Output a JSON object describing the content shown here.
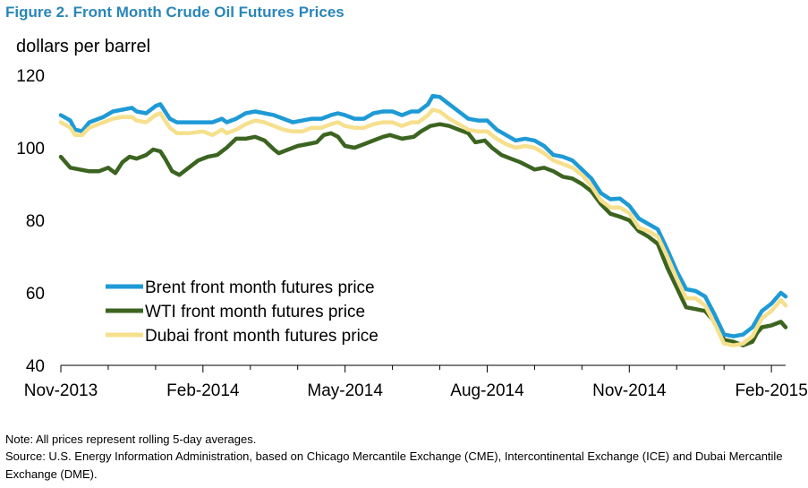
{
  "figure": {
    "title": "Figure 2. Front Month Crude Oil Futures Prices",
    "note": "Note: All prices represent rolling 5-day averages.",
    "source": "Source:  U.S. Energy Information Administration, based on Chicago Mercantile Exchange (CME), Intercontinental Exchange (ICE) and Dubai Mercantile Exchange (DME)."
  },
  "chart_data": {
    "type": "line",
    "ylabel": "dollars per barrel",
    "ylim": [
      40,
      120
    ],
    "yticks": [
      40,
      60,
      80,
      100,
      120
    ],
    "xlim": [
      0,
      15.3
    ],
    "xticks": [
      {
        "x": 0,
        "label": "Nov-2013"
      },
      {
        "x": 3,
        "label": "Feb-2014"
      },
      {
        "x": 6,
        "label": "May-2014"
      },
      {
        "x": 9,
        "label": "Aug-2014"
      },
      {
        "x": 12,
        "label": "Nov-2014"
      },
      {
        "x": 15,
        "label": "Feb-2015"
      }
    ],
    "legend_position": "bottom-left",
    "grid": false,
    "series": [
      {
        "name": "Brent front month futures price",
        "color": "#1e9ad6",
        "points": [
          [
            0,
            109
          ],
          [
            0.2,
            107.5
          ],
          [
            0.3,
            105
          ],
          [
            0.45,
            104.6
          ],
          [
            0.6,
            107
          ],
          [
            0.9,
            108.5
          ],
          [
            1.1,
            110
          ],
          [
            1.3,
            110.5
          ],
          [
            1.5,
            111
          ],
          [
            1.6,
            110
          ],
          [
            1.8,
            109.5
          ],
          [
            2.0,
            111.5
          ],
          [
            2.1,
            112
          ],
          [
            2.2,
            110
          ],
          [
            2.3,
            108
          ],
          [
            2.45,
            107
          ],
          [
            2.7,
            107
          ],
          [
            3.0,
            107
          ],
          [
            3.2,
            107
          ],
          [
            3.4,
            108
          ],
          [
            3.5,
            107
          ],
          [
            3.7,
            108
          ],
          [
            3.9,
            109.5
          ],
          [
            4.1,
            110
          ],
          [
            4.3,
            109.5
          ],
          [
            4.5,
            109
          ],
          [
            4.7,
            108
          ],
          [
            4.9,
            107
          ],
          [
            5.1,
            107.5
          ],
          [
            5.3,
            108
          ],
          [
            5.5,
            108
          ],
          [
            5.7,
            109
          ],
          [
            5.85,
            109.5
          ],
          [
            6.0,
            109
          ],
          [
            6.2,
            108
          ],
          [
            6.4,
            108
          ],
          [
            6.6,
            109.5
          ],
          [
            6.8,
            110
          ],
          [
            7.0,
            110
          ],
          [
            7.2,
            109
          ],
          [
            7.4,
            110
          ],
          [
            7.55,
            110
          ],
          [
            7.75,
            112
          ],
          [
            7.85,
            114.3
          ],
          [
            8.0,
            114
          ],
          [
            8.2,
            112
          ],
          [
            8.4,
            110
          ],
          [
            8.6,
            108
          ],
          [
            8.8,
            107.5
          ],
          [
            9.0,
            107.5
          ],
          [
            9.2,
            105
          ],
          [
            9.4,
            103.5
          ],
          [
            9.6,
            102
          ],
          [
            9.8,
            102.5
          ],
          [
            10.0,
            102
          ],
          [
            10.2,
            100.5
          ],
          [
            10.4,
            98
          ],
          [
            10.6,
            97.5
          ],
          [
            10.8,
            96.5
          ],
          [
            11.0,
            94
          ],
          [
            11.2,
            91.5
          ],
          [
            11.4,
            87.5
          ],
          [
            11.6,
            85.8
          ],
          [
            11.8,
            86
          ],
          [
            12.0,
            84
          ],
          [
            12.2,
            80.5
          ],
          [
            12.4,
            79
          ],
          [
            12.6,
            77.5
          ],
          [
            12.8,
            72
          ],
          [
            13.0,
            66
          ],
          [
            13.2,
            61
          ],
          [
            13.4,
            60.5
          ],
          [
            13.6,
            59
          ],
          [
            13.8,
            54
          ],
          [
            14.0,
            48.5
          ],
          [
            14.2,
            48
          ],
          [
            14.4,
            48.5
          ],
          [
            14.6,
            50.5
          ],
          [
            14.8,
            55
          ],
          [
            15.0,
            57
          ],
          [
            15.2,
            60
          ],
          [
            15.3,
            59
          ]
        ]
      },
      {
        "name": "WTI front month futures price",
        "color": "#3c6421",
        "points": [
          [
            0,
            97.5
          ],
          [
            0.2,
            94.5
          ],
          [
            0.4,
            94
          ],
          [
            0.6,
            93.5
          ],
          [
            0.8,
            93.5
          ],
          [
            1.0,
            94.5
          ],
          [
            1.15,
            93
          ],
          [
            1.3,
            96
          ],
          [
            1.45,
            97.5
          ],
          [
            1.6,
            97
          ],
          [
            1.8,
            98
          ],
          [
            1.95,
            99.5
          ],
          [
            2.1,
            99
          ],
          [
            2.2,
            97
          ],
          [
            2.35,
            93.5
          ],
          [
            2.5,
            92.5
          ],
          [
            2.7,
            94.5
          ],
          [
            2.9,
            96.5
          ],
          [
            3.1,
            97.5
          ],
          [
            3.3,
            98
          ],
          [
            3.5,
            100
          ],
          [
            3.7,
            102.5
          ],
          [
            3.9,
            102.5
          ],
          [
            4.1,
            103
          ],
          [
            4.3,
            102
          ],
          [
            4.5,
            99.5
          ],
          [
            4.6,
            98.5
          ],
          [
            4.8,
            99.5
          ],
          [
            5.0,
            100.5
          ],
          [
            5.2,
            101
          ],
          [
            5.4,
            101.5
          ],
          [
            5.55,
            103.5
          ],
          [
            5.7,
            104
          ],
          [
            5.85,
            103
          ],
          [
            6.0,
            100.5
          ],
          [
            6.2,
            100
          ],
          [
            6.4,
            101
          ],
          [
            6.6,
            102
          ],
          [
            6.8,
            103
          ],
          [
            6.95,
            103.5
          ],
          [
            7.2,
            102.5
          ],
          [
            7.45,
            103
          ],
          [
            7.6,
            104.5
          ],
          [
            7.8,
            106
          ],
          [
            8.0,
            106.5
          ],
          [
            8.2,
            106
          ],
          [
            8.4,
            105
          ],
          [
            8.6,
            104
          ],
          [
            8.75,
            101.5
          ],
          [
            8.95,
            102
          ],
          [
            9.1,
            100
          ],
          [
            9.3,
            98
          ],
          [
            9.5,
            97
          ],
          [
            9.7,
            96
          ],
          [
            9.85,
            95
          ],
          [
            10.0,
            94
          ],
          [
            10.2,
            94.5
          ],
          [
            10.4,
            93.5
          ],
          [
            10.6,
            92
          ],
          [
            10.8,
            91.5
          ],
          [
            11.0,
            90
          ],
          [
            11.2,
            88
          ],
          [
            11.4,
            84.5
          ],
          [
            11.6,
            81.8
          ],
          [
            11.8,
            81
          ],
          [
            12.0,
            80
          ],
          [
            12.2,
            77
          ],
          [
            12.4,
            75.5
          ],
          [
            12.6,
            73.5
          ],
          [
            12.8,
            67
          ],
          [
            13.0,
            61.5
          ],
          [
            13.2,
            56
          ],
          [
            13.4,
            55.5
          ],
          [
            13.6,
            55
          ],
          [
            13.8,
            52
          ],
          [
            14.0,
            47
          ],
          [
            14.2,
            46.5
          ],
          [
            14.4,
            45.5
          ],
          [
            14.6,
            46.5
          ],
          [
            14.7,
            49
          ],
          [
            14.8,
            50.5
          ],
          [
            15.0,
            51
          ],
          [
            15.2,
            52
          ],
          [
            15.3,
            50.5
          ]
        ]
      },
      {
        "name": "Dubai front month futures price",
        "color": "#f6e08d",
        "points": [
          [
            0,
            107
          ],
          [
            0.2,
            105.5
          ],
          [
            0.3,
            103.5
          ],
          [
            0.45,
            103.5
          ],
          [
            0.6,
            105.5
          ],
          [
            0.9,
            107
          ],
          [
            1.1,
            108
          ],
          [
            1.3,
            108.5
          ],
          [
            1.5,
            108.5
          ],
          [
            1.6,
            107.5
          ],
          [
            1.8,
            107
          ],
          [
            2.0,
            109
          ],
          [
            2.1,
            109.5
          ],
          [
            2.2,
            107.5
          ],
          [
            2.3,
            105.5
          ],
          [
            2.45,
            104
          ],
          [
            2.7,
            104
          ],
          [
            3.0,
            104.5
          ],
          [
            3.2,
            103.5
          ],
          [
            3.4,
            105
          ],
          [
            3.5,
            104
          ],
          [
            3.7,
            105
          ],
          [
            3.9,
            106.5
          ],
          [
            4.1,
            107.5
          ],
          [
            4.3,
            107
          ],
          [
            4.5,
            106
          ],
          [
            4.7,
            105
          ],
          [
            4.9,
            104.5
          ],
          [
            5.1,
            104.5
          ],
          [
            5.3,
            105.5
          ],
          [
            5.5,
            105.5
          ],
          [
            5.7,
            106.5
          ],
          [
            5.85,
            107
          ],
          [
            6.0,
            106
          ],
          [
            6.2,
            105.5
          ],
          [
            6.4,
            105.5
          ],
          [
            6.6,
            106.5
          ],
          [
            6.8,
            107
          ],
          [
            7.0,
            107
          ],
          [
            7.2,
            106
          ],
          [
            7.4,
            107
          ],
          [
            7.55,
            107
          ],
          [
            7.75,
            109
          ],
          [
            7.85,
            110.5
          ],
          [
            8.0,
            110
          ],
          [
            8.2,
            108
          ],
          [
            8.4,
            106.5
          ],
          [
            8.6,
            105
          ],
          [
            8.8,
            104.5
          ],
          [
            9.0,
            104.5
          ],
          [
            9.2,
            102.5
          ],
          [
            9.4,
            101
          ],
          [
            9.6,
            100
          ],
          [
            9.8,
            100.5
          ],
          [
            10.0,
            100
          ],
          [
            10.2,
            98.5
          ],
          [
            10.4,
            96.5
          ],
          [
            10.6,
            95.5
          ],
          [
            10.8,
            94.5
          ],
          [
            11.0,
            92.5
          ],
          [
            11.2,
            89.5
          ],
          [
            11.4,
            85.5
          ],
          [
            11.6,
            83.5
          ],
          [
            11.8,
            83.5
          ],
          [
            12.0,
            82
          ],
          [
            12.2,
            78
          ],
          [
            12.4,
            77
          ],
          [
            12.6,
            75.5
          ],
          [
            12.8,
            70
          ],
          [
            13.0,
            64
          ],
          [
            13.2,
            58.5
          ],
          [
            13.4,
            58.5
          ],
          [
            13.6,
            56.5
          ],
          [
            13.8,
            51.5
          ],
          [
            14.0,
            46
          ],
          [
            14.2,
            45.5
          ],
          [
            14.4,
            46
          ],
          [
            14.6,
            48
          ],
          [
            14.8,
            53
          ],
          [
            15.0,
            55
          ],
          [
            15.2,
            58
          ],
          [
            15.3,
            56.5
          ]
        ]
      }
    ]
  }
}
